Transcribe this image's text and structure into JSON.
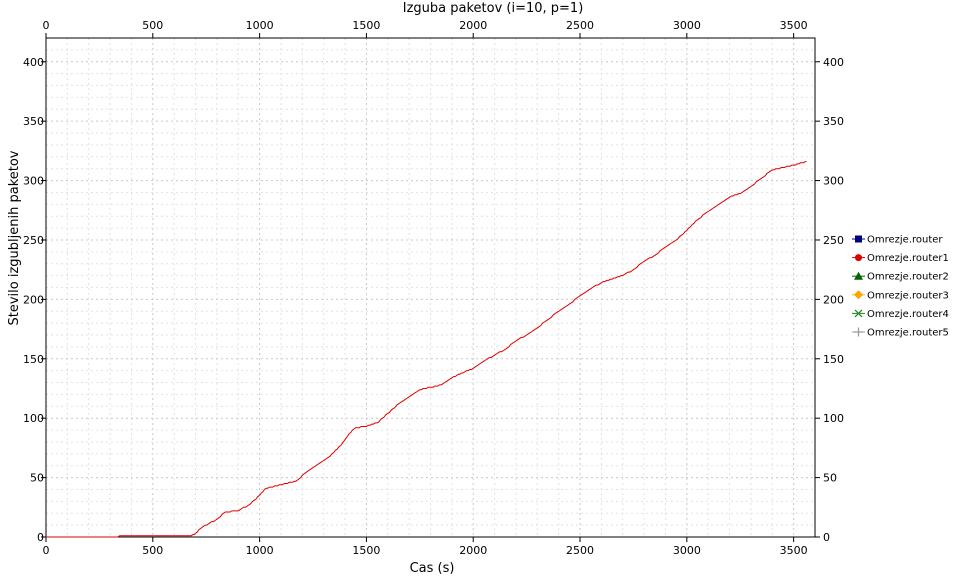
{
  "chart_data": {
    "type": "line",
    "title": "Izguba paketov (i=10, p=1)",
    "xlabel": "Cas (s)",
    "ylabel": "Stevilo izgubljenih paketov",
    "xlim": [
      0,
      3600
    ],
    "ylim": [
      0,
      420
    ],
    "x_ticks": [
      0,
      500,
      1000,
      1500,
      2000,
      2500,
      3000,
      3500
    ],
    "y_ticks": [
      0,
      50,
      100,
      150,
      200,
      250,
      300,
      350,
      400
    ],
    "grid": true,
    "legend_position": "right",
    "series": [
      {
        "name": "Omrezje.router",
        "color": "#000080",
        "marker": "square",
        "x": [],
        "y": []
      },
      {
        "name": "Omrezje.router1",
        "color": "#dd0000",
        "marker": "circle",
        "x": [
          0,
          680,
          700,
          730,
          760,
          800,
          840,
          900,
          950,
          1000,
          1030,
          1100,
          1170,
          1230,
          1280,
          1330,
          1380,
          1420,
          1450,
          1500,
          1550,
          1600,
          1650,
          1700,
          1750,
          1850,
          1900,
          1960,
          2000,
          2050,
          2100,
          2150,
          2200,
          2250,
          2300,
          2350,
          2400,
          2450,
          2500,
          2550,
          2600,
          2650,
          2700,
          2750,
          2800,
          2850,
          2900,
          2950,
          3000,
          3050,
          3100,
          3150,
          3200,
          3250,
          3300,
          3350,
          3400,
          3450,
          3500,
          3540,
          3560
        ],
        "y": [
          0,
          1,
          3,
          8,
          11,
          15,
          21,
          22,
          27,
          35,
          41,
          44,
          47,
          56,
          62,
          68,
          77,
          87,
          92,
          93,
          96,
          104,
          112,
          118,
          124,
          128,
          134,
          139,
          142,
          148,
          153,
          158,
          165,
          170,
          176,
          183,
          190,
          196,
          203,
          209,
          214,
          217,
          220,
          225,
          232,
          237,
          244,
          250,
          258,
          267,
          274,
          280,
          286,
          289,
          295,
          302,
          309,
          311,
          313,
          315,
          316
        ]
      },
      {
        "name": "Omrezje.router2",
        "color": "#006400",
        "marker": "triangle",
        "x": [],
        "y": []
      },
      {
        "name": "Omrezje.router3",
        "color": "#ffa500",
        "marker": "diamond",
        "x": [],
        "y": []
      },
      {
        "name": "Omrezje.router4",
        "color": "#228b22",
        "marker": "cross",
        "x": [],
        "y": []
      },
      {
        "name": "Omrezje.router5",
        "color": "#999999",
        "marker": "plus",
        "x": [],
        "y": []
      }
    ]
  }
}
